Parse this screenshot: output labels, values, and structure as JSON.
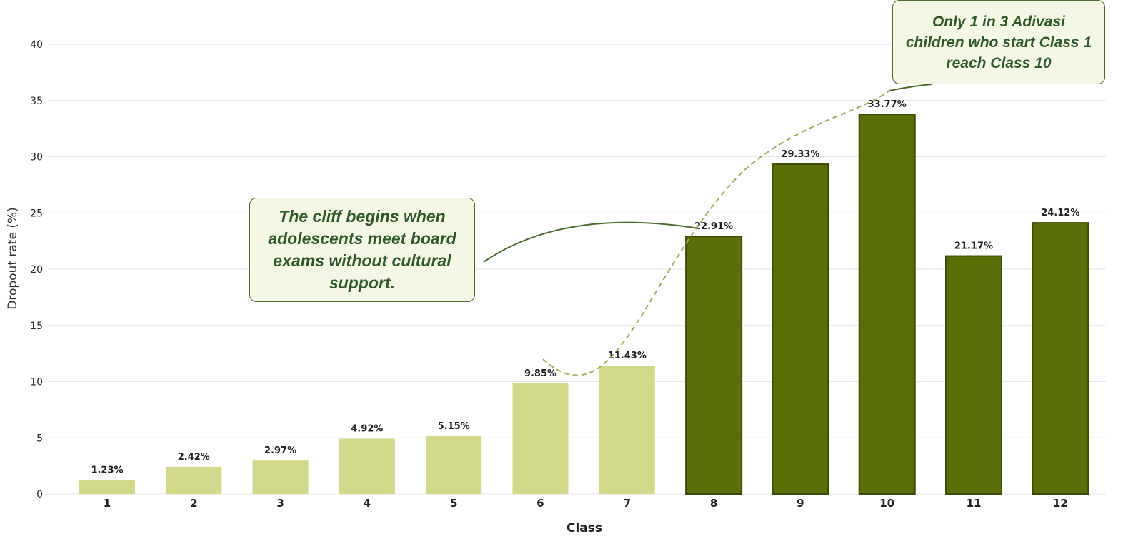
{
  "chart_data": {
    "type": "bar",
    "categories": [
      "1",
      "2",
      "3",
      "4",
      "5",
      "6",
      "7",
      "8",
      "9",
      "10",
      "11",
      "12"
    ],
    "values": [
      1.23,
      2.42,
      2.97,
      4.92,
      5.15,
      9.85,
      11.43,
      22.91,
      29.33,
      33.77,
      21.17,
      24.12
    ],
    "data_labels": [
      "1.23%",
      "2.42%",
      "2.97%",
      "4.92%",
      "5.15%",
      "9.85%",
      "11.43%",
      "22.91%",
      "29.33%",
      "33.77%",
      "21.17%",
      "24.12%"
    ],
    "xlabel": "Class",
    "ylabel": "Dropout rate (%)",
    "ylim": [
      0,
      40
    ],
    "yticks": [
      0,
      5,
      10,
      15,
      20,
      25,
      30,
      35,
      40
    ],
    "grid": true,
    "colors": {
      "light": "#d3d98a",
      "dark": "#5a6e08",
      "dark_edge": "#3b4a05"
    },
    "annotations": [
      {
        "text": "The cliff begins when adolescents meet board exams without cultural support."
      },
      {
        "text": "Only 1 in 3 Adivasi children who start Class 1 reach Class 10"
      }
    ]
  }
}
